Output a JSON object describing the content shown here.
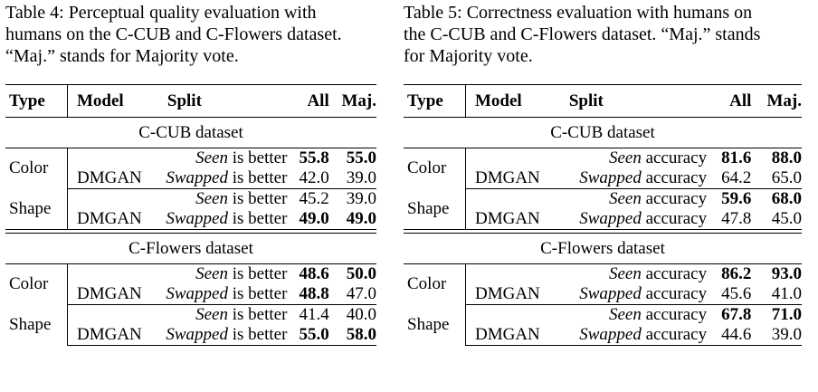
{
  "left": {
    "caption": "Table 4:  Perceptual quality evaluation with\nhumans on the C-CUB and C-Flowers dataset.\n“Maj.” stands for Majority vote.",
    "headers": [
      "Type",
      "Model",
      "Split",
      "All",
      "Maj."
    ],
    "sections": [
      {
        "title": "C-CUB dataset",
        "groups": [
          {
            "type": "Color",
            "rows": [
              {
                "model": "",
                "split_em": "Seen",
                "split_rest": " is better",
                "all": "55.8",
                "all_bold": true,
                "maj": "55.0",
                "maj_bold": true
              },
              {
                "model": "DMGAN",
                "split_em": "Swapped",
                "split_rest": " is better",
                "all": "42.0",
                "all_bold": false,
                "maj": "39.0",
                "maj_bold": false
              }
            ]
          },
          {
            "type": "Shape",
            "rows": [
              {
                "model": "",
                "split_em": "Seen",
                "split_rest": " is better",
                "all": "45.2",
                "all_bold": false,
                "maj": "39.0",
                "maj_bold": false
              },
              {
                "model": "DMGAN",
                "split_em": "Swapped",
                "split_rest": " is better",
                "all": "49.0",
                "all_bold": true,
                "maj": "49.0",
                "maj_bold": true
              }
            ]
          }
        ]
      },
      {
        "title": "C-Flowers dataset",
        "groups": [
          {
            "type": "Color",
            "rows": [
              {
                "model": "",
                "split_em": "Seen",
                "split_rest": " is better",
                "all": "48.6",
                "all_bold": true,
                "maj": "50.0",
                "maj_bold": true
              },
              {
                "model": "DMGAN",
                "split_em": "Swapped",
                "split_rest": " is better",
                "all": "48.8",
                "all_bold": true,
                "maj": "47.0",
                "maj_bold": false
              }
            ]
          },
          {
            "type": "Shape",
            "rows": [
              {
                "model": "",
                "split_em": "Seen",
                "split_rest": " is better",
                "all": "41.4",
                "all_bold": false,
                "maj": "40.0",
                "maj_bold": false
              },
              {
                "model": "DMGAN",
                "split_em": "Swapped",
                "split_rest": " is better",
                "all": "55.0",
                "all_bold": true,
                "maj": "58.0",
                "maj_bold": true
              }
            ]
          }
        ]
      }
    ]
  },
  "right": {
    "caption": "Table 5:  Correctness evaluation with humans on\nthe C-CUB and C-Flowers dataset. “Maj.” stands\nfor Majority vote.",
    "headers": [
      "Type",
      "Model",
      "Split",
      "All",
      "Maj."
    ],
    "sections": [
      {
        "title": "C-CUB dataset",
        "groups": [
          {
            "type": "Color",
            "rows": [
              {
                "model": "",
                "split_em": "Seen",
                "split_rest": " accuracy",
                "all": "81.6",
                "all_bold": true,
                "maj": "88.0",
                "maj_bold": true
              },
              {
                "model": "DMGAN",
                "split_em": "Swapped",
                "split_rest": " accuracy",
                "all": "64.2",
                "all_bold": false,
                "maj": "65.0",
                "maj_bold": false
              }
            ]
          },
          {
            "type": "Shape",
            "rows": [
              {
                "model": "",
                "split_em": "Seen",
                "split_rest": " accuracy",
                "all": "59.6",
                "all_bold": true,
                "maj": "68.0",
                "maj_bold": true
              },
              {
                "model": "DMGAN",
                "split_em": "Swapped",
                "split_rest": " accuracy",
                "all": "47.8",
                "all_bold": false,
                "maj": "45.0",
                "maj_bold": false
              }
            ]
          }
        ]
      },
      {
        "title": "C-Flowers dataset",
        "groups": [
          {
            "type": "Color",
            "rows": [
              {
                "model": "",
                "split_em": "Seen",
                "split_rest": " accuracy",
                "all": "86.2",
                "all_bold": true,
                "maj": "93.0",
                "maj_bold": true
              },
              {
                "model": "DMGAN",
                "split_em": "Swapped",
                "split_rest": " accuracy",
                "all": "45.6",
                "all_bold": false,
                "maj": "41.0",
                "maj_bold": false
              }
            ]
          },
          {
            "type": "Shape",
            "rows": [
              {
                "model": "",
                "split_em": "Seen",
                "split_rest": " accuracy",
                "all": "67.8",
                "all_bold": true,
                "maj": "71.0",
                "maj_bold": true
              },
              {
                "model": "DMGAN",
                "split_em": "Swapped",
                "split_rest": " accuracy",
                "all": "44.6",
                "all_bold": false,
                "maj": "39.0",
                "maj_bold": false
              }
            ]
          }
        ]
      }
    ]
  }
}
